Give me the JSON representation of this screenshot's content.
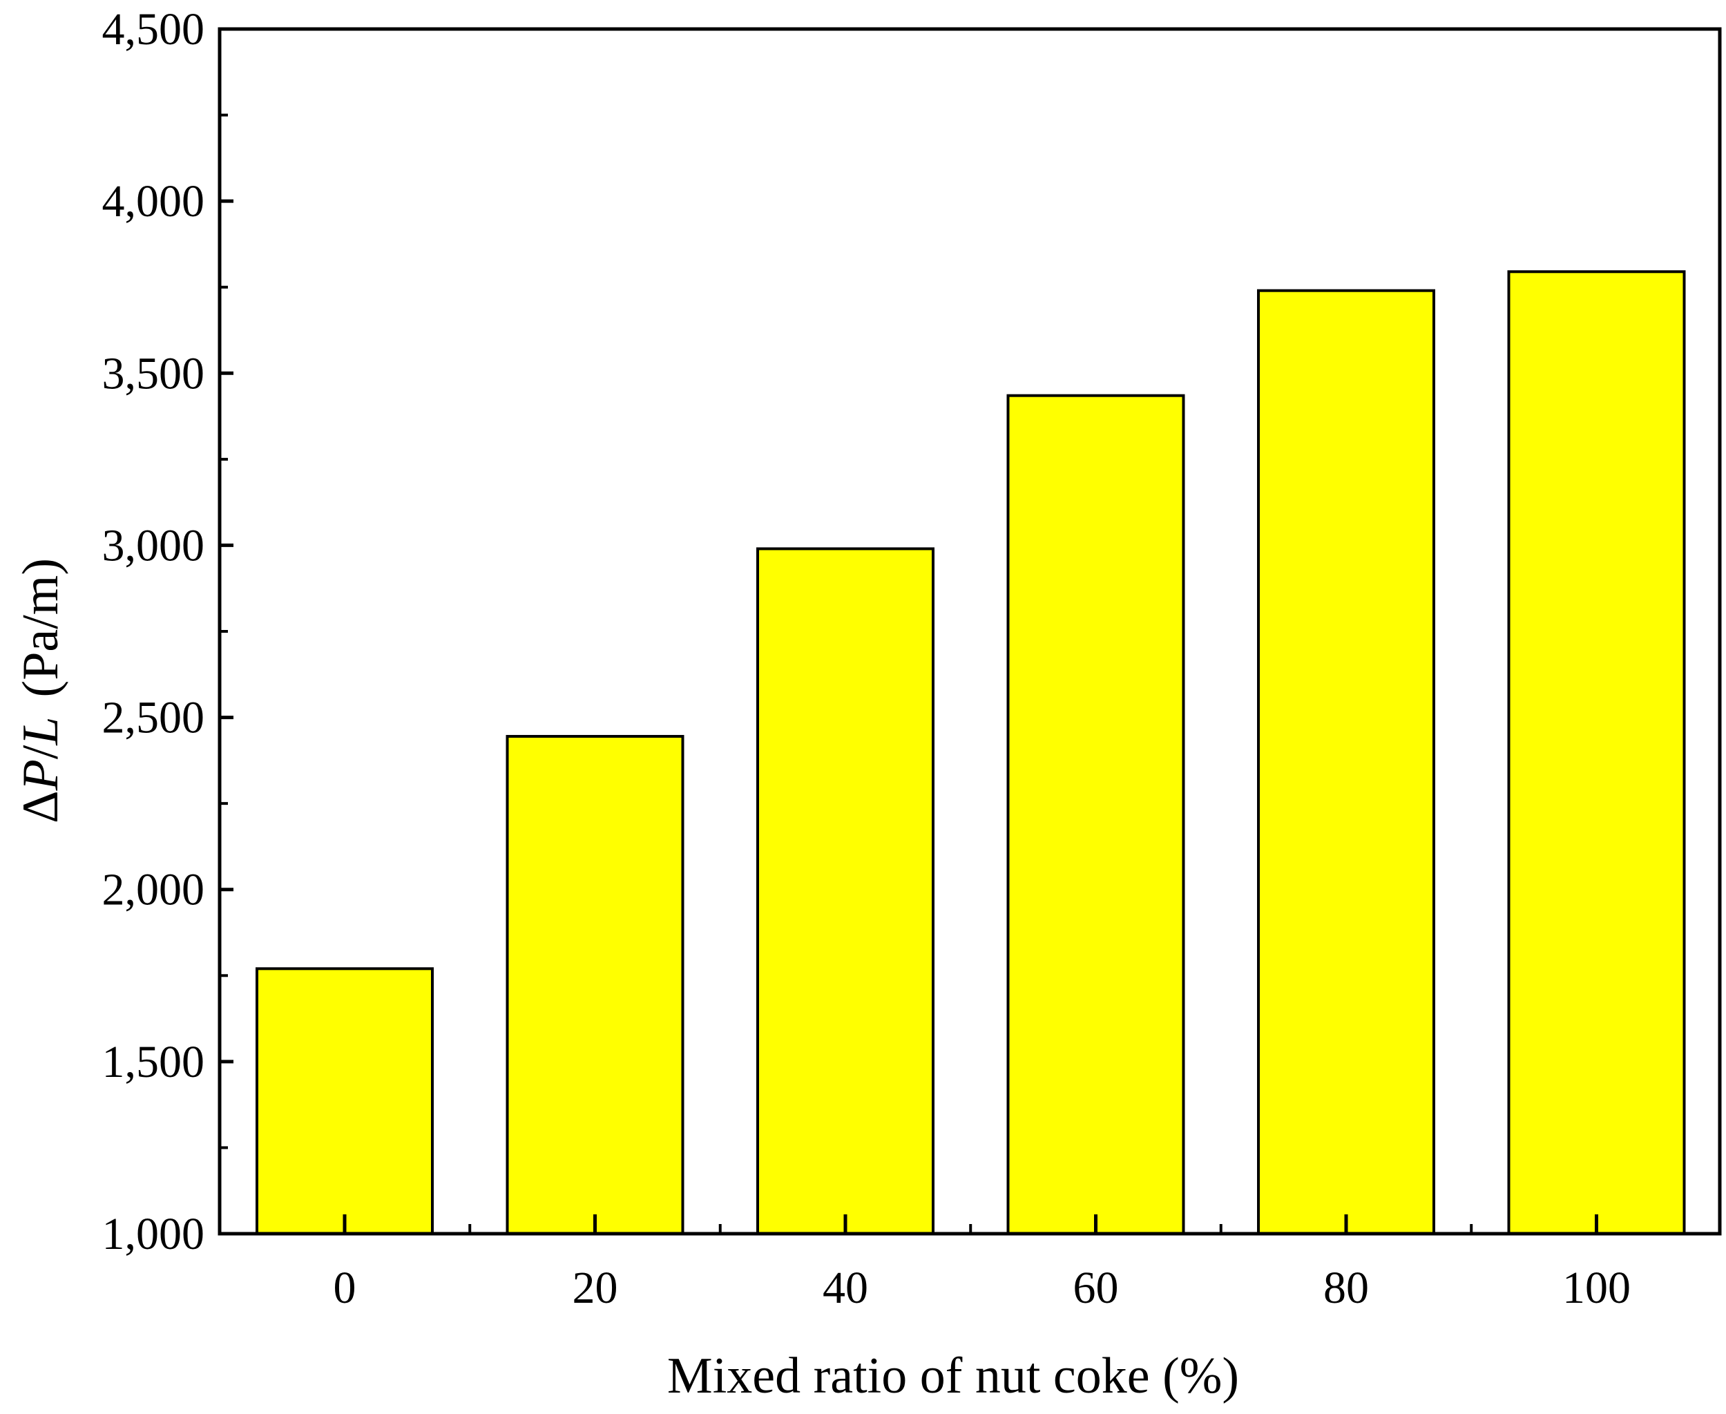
{
  "chart_data": {
    "type": "bar",
    "categories": [
      "0",
      "20",
      "40",
      "60",
      "80",
      "100"
    ],
    "values": [
      1770,
      2445,
      2990,
      3435,
      3740,
      3795
    ],
    "title": "",
    "xlabel": "Mixed ratio of nut coke (%)",
    "ylabel": {
      "delta": "Δ",
      "p": "P",
      "slash": "/",
      "l": "L",
      "unit": "(Pa/m)"
    },
    "ylim": [
      1000,
      4500
    ],
    "yticks": [
      1000,
      1500,
      2000,
      2500,
      3000,
      3500,
      4000,
      4500
    ],
    "ytick_labels": [
      "1,000",
      "1,500",
      "2,000",
      "2,500",
      "3,000",
      "3,500",
      "4,000",
      "4,500"
    ],
    "grid": false,
    "legend": "none",
    "colors": {
      "bar_fill": "#ffff00",
      "bar_stroke": "#000000",
      "axis": "#000000"
    }
  }
}
